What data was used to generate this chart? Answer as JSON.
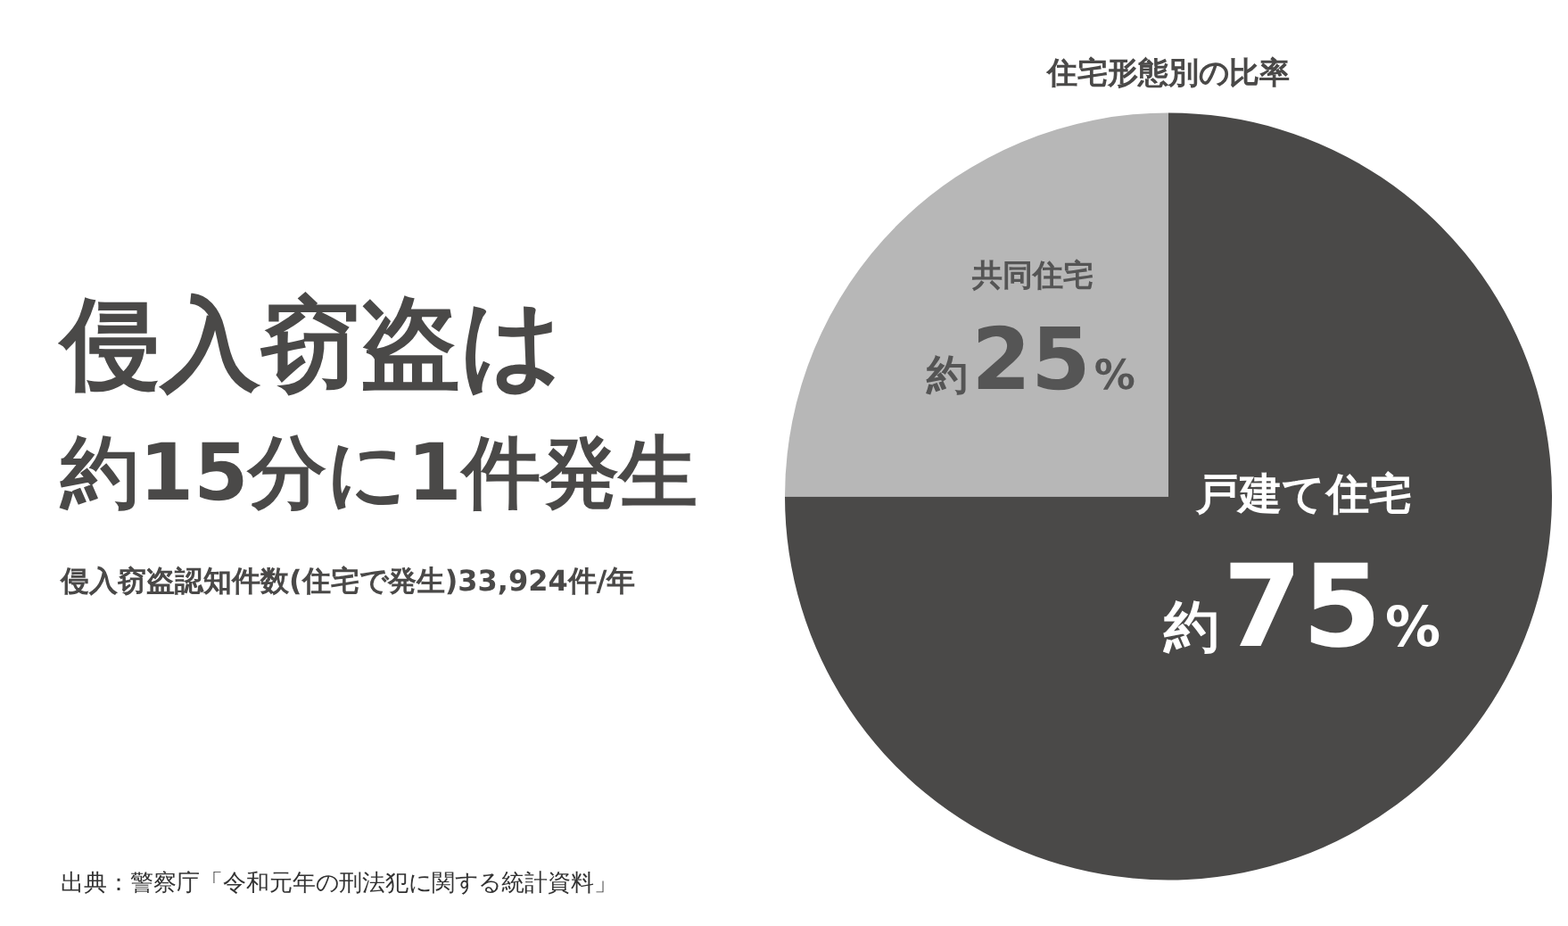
{
  "chart_data": {
    "type": "pie",
    "title": "住宅形態別の比率",
    "categories": [
      "戸建て住宅",
      "共同住宅"
    ],
    "values": [
      75,
      25
    ],
    "colors": [
      "#4a4948",
      "#b7b7b7"
    ],
    "value_labels": [
      "約75%",
      "約25%"
    ],
    "annotations": [
      "侵入窃盗は",
      "約15分に1件発生",
      "侵入窃盗認知件数(住宅で発生)33,924件/年",
      "出典：警察庁「令和元年の刑法犯に関する統計資料」"
    ]
  }
}
